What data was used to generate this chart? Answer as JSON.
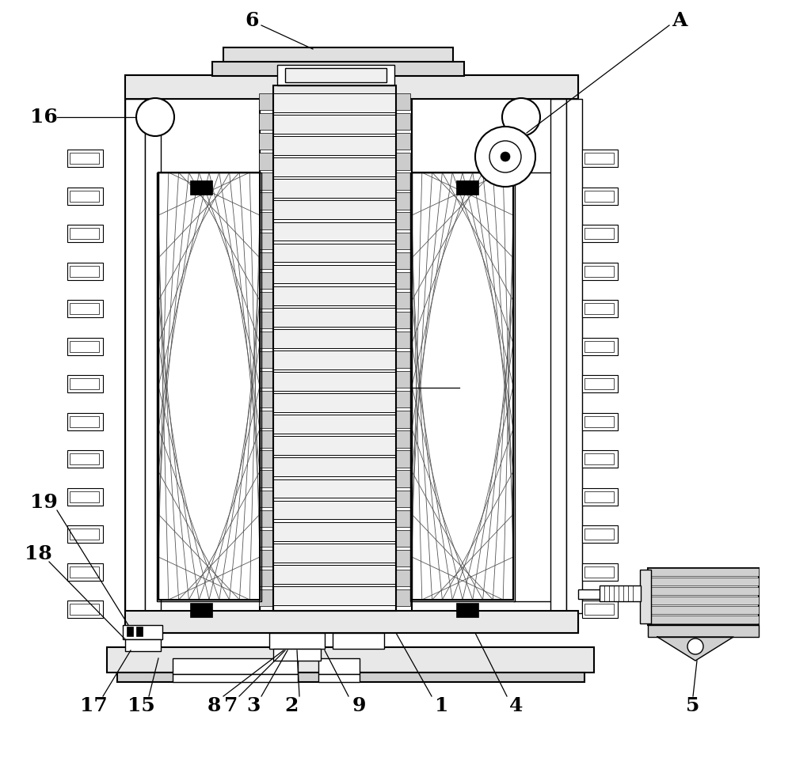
{
  "bg_color": "#ffffff",
  "line_color": "#000000",
  "fig_width": 10.0,
  "fig_height": 9.77,
  "dpi": 100
}
